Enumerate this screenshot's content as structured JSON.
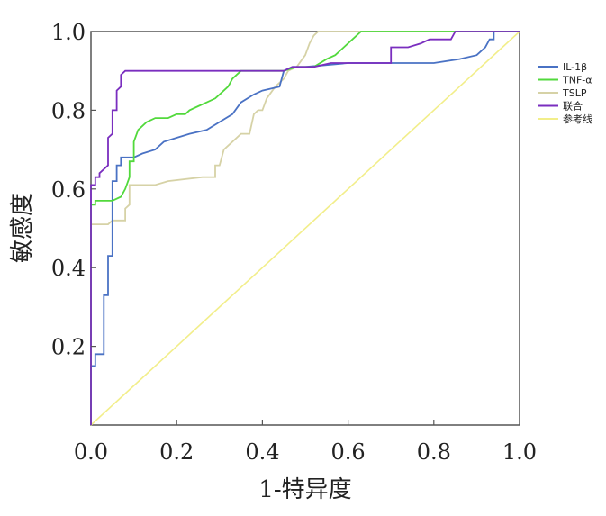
{
  "chart_data": {
    "type": "line",
    "xlabel": "1-特异度",
    "ylabel": "敏感度",
    "xlim": [
      0,
      1
    ],
    "ylim": [
      0,
      1
    ],
    "x_ticks": [
      "0.0",
      "0.2",
      "0.4",
      "0.6",
      "0.8",
      "1.0"
    ],
    "y_ticks": [
      "0.2",
      "0.4",
      "0.6",
      "0.8",
      "1.0"
    ],
    "legend_position": "right",
    "grid": false,
    "series": [
      {
        "name": "IL-1β",
        "color": "#4a72c4",
        "points": [
          [
            0,
            0
          ],
          [
            0,
            0.15
          ],
          [
            0.01,
            0.15
          ],
          [
            0.01,
            0.18
          ],
          [
            0.03,
            0.18
          ],
          [
            0.03,
            0.33
          ],
          [
            0.04,
            0.33
          ],
          [
            0.04,
            0.43
          ],
          [
            0.05,
            0.43
          ],
          [
            0.05,
            0.62
          ],
          [
            0.06,
            0.62
          ],
          [
            0.06,
            0.66
          ],
          [
            0.07,
            0.66
          ],
          [
            0.07,
            0.68
          ],
          [
            0.1,
            0.68
          ],
          [
            0.12,
            0.69
          ],
          [
            0.15,
            0.7
          ],
          [
            0.17,
            0.72
          ],
          [
            0.2,
            0.73
          ],
          [
            0.23,
            0.74
          ],
          [
            0.27,
            0.75
          ],
          [
            0.3,
            0.77
          ],
          [
            0.33,
            0.79
          ],
          [
            0.35,
            0.82
          ],
          [
            0.38,
            0.84
          ],
          [
            0.4,
            0.85
          ],
          [
            0.44,
            0.86
          ],
          [
            0.45,
            0.9
          ],
          [
            0.47,
            0.91
          ],
          [
            0.5,
            0.91
          ],
          [
            0.6,
            0.92
          ],
          [
            0.7,
            0.92
          ],
          [
            0.8,
            0.92
          ],
          [
            0.86,
            0.93
          ],
          [
            0.9,
            0.94
          ],
          [
            0.92,
            0.96
          ],
          [
            0.93,
            0.98
          ],
          [
            0.94,
            0.98
          ],
          [
            0.94,
            1.0
          ],
          [
            1.0,
            1.0
          ]
        ]
      },
      {
        "name": "TNF-α",
        "color": "#52d93c",
        "points": [
          [
            0,
            0
          ],
          [
            0,
            0.56
          ],
          [
            0.01,
            0.56
          ],
          [
            0.01,
            0.57
          ],
          [
            0.05,
            0.57
          ],
          [
            0.07,
            0.58
          ],
          [
            0.08,
            0.6
          ],
          [
            0.09,
            0.63
          ],
          [
            0.09,
            0.67
          ],
          [
            0.1,
            0.67
          ],
          [
            0.1,
            0.72
          ],
          [
            0.11,
            0.75
          ],
          [
            0.13,
            0.77
          ],
          [
            0.15,
            0.78
          ],
          [
            0.18,
            0.78
          ],
          [
            0.2,
            0.79
          ],
          [
            0.22,
            0.79
          ],
          [
            0.23,
            0.8
          ],
          [
            0.25,
            0.81
          ],
          [
            0.27,
            0.82
          ],
          [
            0.29,
            0.83
          ],
          [
            0.3,
            0.84
          ],
          [
            0.32,
            0.86
          ],
          [
            0.33,
            0.88
          ],
          [
            0.34,
            0.89
          ],
          [
            0.35,
            0.9
          ],
          [
            0.45,
            0.9
          ],
          [
            0.48,
            0.91
          ],
          [
            0.52,
            0.91
          ],
          [
            0.55,
            0.93
          ],
          [
            0.57,
            0.94
          ],
          [
            0.59,
            0.96
          ],
          [
            0.61,
            0.98
          ],
          [
            0.63,
            1.0
          ],
          [
            1.0,
            1.0
          ]
        ]
      },
      {
        "name": "TSLP",
        "color": "#d6d2a6",
        "points": [
          [
            0,
            0
          ],
          [
            0,
            0.51
          ],
          [
            0.04,
            0.51
          ],
          [
            0.05,
            0.52
          ],
          [
            0.08,
            0.52
          ],
          [
            0.08,
            0.55
          ],
          [
            0.09,
            0.56
          ],
          [
            0.09,
            0.61
          ],
          [
            0.15,
            0.61
          ],
          [
            0.18,
            0.62
          ],
          [
            0.26,
            0.63
          ],
          [
            0.29,
            0.63
          ],
          [
            0.29,
            0.66
          ],
          [
            0.3,
            0.66
          ],
          [
            0.31,
            0.7
          ],
          [
            0.33,
            0.72
          ],
          [
            0.35,
            0.74
          ],
          [
            0.37,
            0.74
          ],
          [
            0.38,
            0.79
          ],
          [
            0.39,
            0.8
          ],
          [
            0.4,
            0.8
          ],
          [
            0.41,
            0.83
          ],
          [
            0.43,
            0.86
          ],
          [
            0.45,
            0.88
          ],
          [
            0.46,
            0.9
          ],
          [
            0.48,
            0.91
          ],
          [
            0.5,
            0.94
          ],
          [
            0.51,
            0.97
          ],
          [
            0.52,
            0.99
          ],
          [
            0.53,
            1.0
          ],
          [
            1.0,
            1.0
          ]
        ]
      },
      {
        "name": "联合",
        "color": "#7a2ebf",
        "points": [
          [
            0,
            0
          ],
          [
            0,
            0.61
          ],
          [
            0.01,
            0.61
          ],
          [
            0.01,
            0.63
          ],
          [
            0.02,
            0.63
          ],
          [
            0.02,
            0.64
          ],
          [
            0.03,
            0.65
          ],
          [
            0.04,
            0.66
          ],
          [
            0.04,
            0.73
          ],
          [
            0.05,
            0.74
          ],
          [
            0.05,
            0.8
          ],
          [
            0.06,
            0.8
          ],
          [
            0.06,
            0.85
          ],
          [
            0.07,
            0.86
          ],
          [
            0.07,
            0.89
          ],
          [
            0.08,
            0.9
          ],
          [
            0.45,
            0.9
          ],
          [
            0.47,
            0.91
          ],
          [
            0.52,
            0.91
          ],
          [
            0.56,
            0.92
          ],
          [
            0.7,
            0.92
          ],
          [
            0.7,
            0.96
          ],
          [
            0.74,
            0.96
          ],
          [
            0.77,
            0.97
          ],
          [
            0.79,
            0.98
          ],
          [
            0.84,
            0.98
          ],
          [
            0.85,
            1.0
          ],
          [
            1.0,
            1.0
          ]
        ]
      },
      {
        "name": "参考线",
        "color": "#f2ee8a",
        "points": [
          [
            0,
            0
          ],
          [
            1,
            1
          ]
        ]
      }
    ]
  }
}
